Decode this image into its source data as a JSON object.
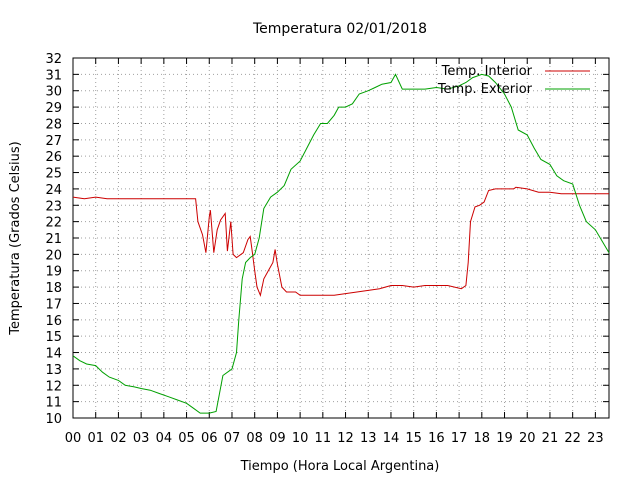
{
  "chart_data": {
    "type": "line",
    "title": "Temperatura 02/01/2018",
    "xlabel": "Tiempo (Hora Local Argentina)",
    "ylabel": "Temperatura (Grados Celsius)",
    "xlim": [
      0,
      23.6
    ],
    "ylim": [
      10,
      32
    ],
    "x_ticks": [
      "00",
      "01",
      "02",
      "03",
      "04",
      "05",
      "06",
      "07",
      "08",
      "09",
      "10",
      "11",
      "12",
      "13",
      "14",
      "15",
      "16",
      "17",
      "18",
      "19",
      "20",
      "21",
      "22",
      "23"
    ],
    "y_ticks": [
      10,
      11,
      12,
      13,
      14,
      15,
      16,
      17,
      18,
      19,
      20,
      21,
      22,
      23,
      24,
      25,
      26,
      27,
      28,
      29,
      30,
      31,
      32
    ],
    "grid": true,
    "legend_position": "top-right",
    "series": [
      {
        "name": "Temp. Interior",
        "color": "#cc0000",
        "points": [
          [
            0,
            23.5
          ],
          [
            0.5,
            23.4
          ],
          [
            1,
            23.5
          ],
          [
            1.5,
            23.4
          ],
          [
            2,
            23.4
          ],
          [
            3,
            23.4
          ],
          [
            4,
            23.4
          ],
          [
            5,
            23.4
          ],
          [
            5.4,
            23.4
          ],
          [
            5.5,
            22
          ],
          [
            5.7,
            21.2
          ],
          [
            5.85,
            20.1
          ],
          [
            6.0,
            22.3
          ],
          [
            6.05,
            22.7
          ],
          [
            6.2,
            20.1
          ],
          [
            6.35,
            21.5
          ],
          [
            6.5,
            22.1
          ],
          [
            6.7,
            22.5
          ],
          [
            6.8,
            20.2
          ],
          [
            6.95,
            22.0
          ],
          [
            7.05,
            20.0
          ],
          [
            7.2,
            19.8
          ],
          [
            7.5,
            20.1
          ],
          [
            7.7,
            20.9
          ],
          [
            7.8,
            21.1
          ],
          [
            7.9,
            20.1
          ],
          [
            8.0,
            19.0
          ],
          [
            8.1,
            18.0
          ],
          [
            8.25,
            17.5
          ],
          [
            8.4,
            18.5
          ],
          [
            8.6,
            19.0
          ],
          [
            8.8,
            19.5
          ],
          [
            8.9,
            20.3
          ],
          [
            9.0,
            19.4
          ],
          [
            9.2,
            18.0
          ],
          [
            9.4,
            17.7
          ],
          [
            9.8,
            17.7
          ],
          [
            10,
            17.5
          ],
          [
            10.5,
            17.5
          ],
          [
            11,
            17.5
          ],
          [
            11.5,
            17.5
          ],
          [
            12,
            17.6
          ],
          [
            12.5,
            17.7
          ],
          [
            13,
            17.8
          ],
          [
            13.5,
            17.9
          ],
          [
            14,
            18.1
          ],
          [
            14.5,
            18.1
          ],
          [
            15,
            18.0
          ],
          [
            15.5,
            18.1
          ],
          [
            16,
            18.1
          ],
          [
            16.5,
            18.1
          ],
          [
            16.8,
            18.0
          ],
          [
            17.1,
            17.9
          ],
          [
            17.3,
            18.1
          ],
          [
            17.4,
            19.5
          ],
          [
            17.5,
            22.0
          ],
          [
            17.7,
            22.9
          ],
          [
            17.9,
            23.0
          ],
          [
            18.1,
            23.2
          ],
          [
            18.3,
            23.9
          ],
          [
            18.6,
            24.0
          ],
          [
            19,
            24.0
          ],
          [
            19.4,
            24.0
          ],
          [
            19.5,
            24.1
          ],
          [
            20,
            24.0
          ],
          [
            20.5,
            23.8
          ],
          [
            21,
            23.8
          ],
          [
            21.5,
            23.7
          ],
          [
            22,
            23.7
          ],
          [
            22.5,
            23.7
          ],
          [
            23,
            23.7
          ],
          [
            23.6,
            23.7
          ]
        ]
      },
      {
        "name": "Temp. Exterior",
        "color": "#00a000",
        "points": [
          [
            0,
            13.8
          ],
          [
            0.3,
            13.5
          ],
          [
            0.6,
            13.3
          ],
          [
            1,
            13.2
          ],
          [
            1.3,
            12.8
          ],
          [
            1.6,
            12.5
          ],
          [
            2,
            12.3
          ],
          [
            2.3,
            12.0
          ],
          [
            2.7,
            11.9
          ],
          [
            3,
            11.8
          ],
          [
            3.4,
            11.7
          ],
          [
            3.8,
            11.5
          ],
          [
            4.2,
            11.3
          ],
          [
            4.6,
            11.1
          ],
          [
            5,
            10.9
          ],
          [
            5.3,
            10.6
          ],
          [
            5.6,
            10.3
          ],
          [
            6.0,
            10.3
          ],
          [
            6.3,
            10.4
          ],
          [
            6.6,
            12.6
          ],
          [
            7.0,
            13.0
          ],
          [
            7.2,
            14.0
          ],
          [
            7.3,
            16.0
          ],
          [
            7.45,
            18.5
          ],
          [
            7.6,
            19.5
          ],
          [
            7.8,
            19.8
          ],
          [
            8.0,
            20.0
          ],
          [
            8.2,
            21.0
          ],
          [
            8.4,
            22.8
          ],
          [
            8.7,
            23.5
          ],
          [
            9.0,
            23.8
          ],
          [
            9.3,
            24.2
          ],
          [
            9.6,
            25.2
          ],
          [
            10.0,
            25.7
          ],
          [
            10.3,
            26.5
          ],
          [
            10.6,
            27.3
          ],
          [
            10.9,
            28.0
          ],
          [
            11.2,
            28.0
          ],
          [
            11.5,
            28.5
          ],
          [
            11.7,
            29.0
          ],
          [
            12.0,
            29.0
          ],
          [
            12.3,
            29.2
          ],
          [
            12.6,
            29.8
          ],
          [
            13,
            30.0
          ],
          [
            13.3,
            30.2
          ],
          [
            13.6,
            30.4
          ],
          [
            14,
            30.5
          ],
          [
            14.2,
            31.0
          ],
          [
            14.5,
            30.1
          ],
          [
            15,
            30.1
          ],
          [
            15.5,
            30.1
          ],
          [
            16,
            30.2
          ],
          [
            16.5,
            30.1
          ],
          [
            17,
            30.3
          ],
          [
            17.3,
            30.5
          ],
          [
            17.6,
            30.8
          ],
          [
            18,
            31.0
          ],
          [
            18.3,
            30.9
          ],
          [
            18.6,
            30.5
          ],
          [
            19,
            29.8
          ],
          [
            19.3,
            29.0
          ],
          [
            19.6,
            27.6
          ],
          [
            20,
            27.3
          ],
          [
            20.3,
            26.5
          ],
          [
            20.6,
            25.8
          ],
          [
            21,
            25.5
          ],
          [
            21.3,
            24.8
          ],
          [
            21.6,
            24.5
          ],
          [
            22,
            24.3
          ],
          [
            22.3,
            23.0
          ],
          [
            22.6,
            22.0
          ],
          [
            23,
            21.5
          ],
          [
            23.3,
            20.8
          ],
          [
            23.6,
            20.1
          ]
        ]
      }
    ]
  }
}
